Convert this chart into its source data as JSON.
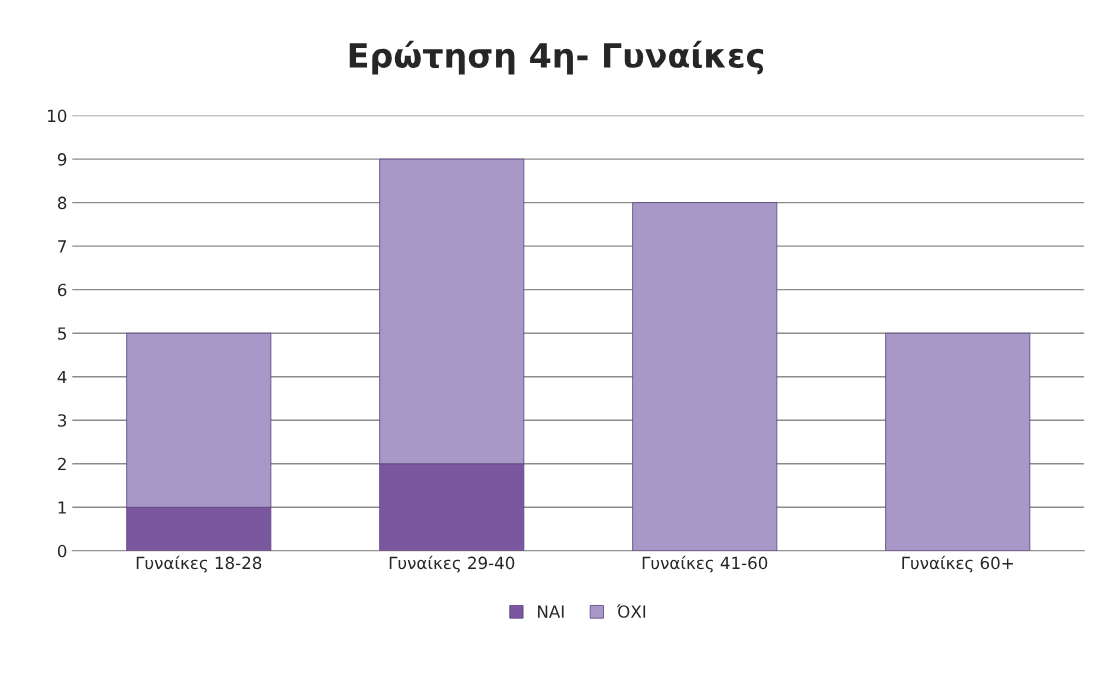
{
  "chart_data": {
    "type": "bar",
    "title": "Ερώτηση 4η- Γυναίκες",
    "categories": [
      "Γυναίκες 18-28",
      "Γυναίκες 29-40",
      "Γυναίκες 41-60",
      "Γυναίκες 60+"
    ],
    "series": [
      {
        "name": "ΝΑΙ",
        "color": "#7b579f",
        "values": [
          1,
          2,
          0,
          0
        ]
      },
      {
        "name": "ΌΧΙ",
        "color": "#a898c8",
        "values": [
          4,
          7,
          8,
          5
        ]
      }
    ],
    "stacked": true,
    "ylim": [
      0,
      10
    ],
    "yticks": [
      0,
      1,
      2,
      3,
      4,
      5,
      6,
      7,
      8,
      9,
      10
    ],
    "grid": "y",
    "legend": "bottom"
  }
}
